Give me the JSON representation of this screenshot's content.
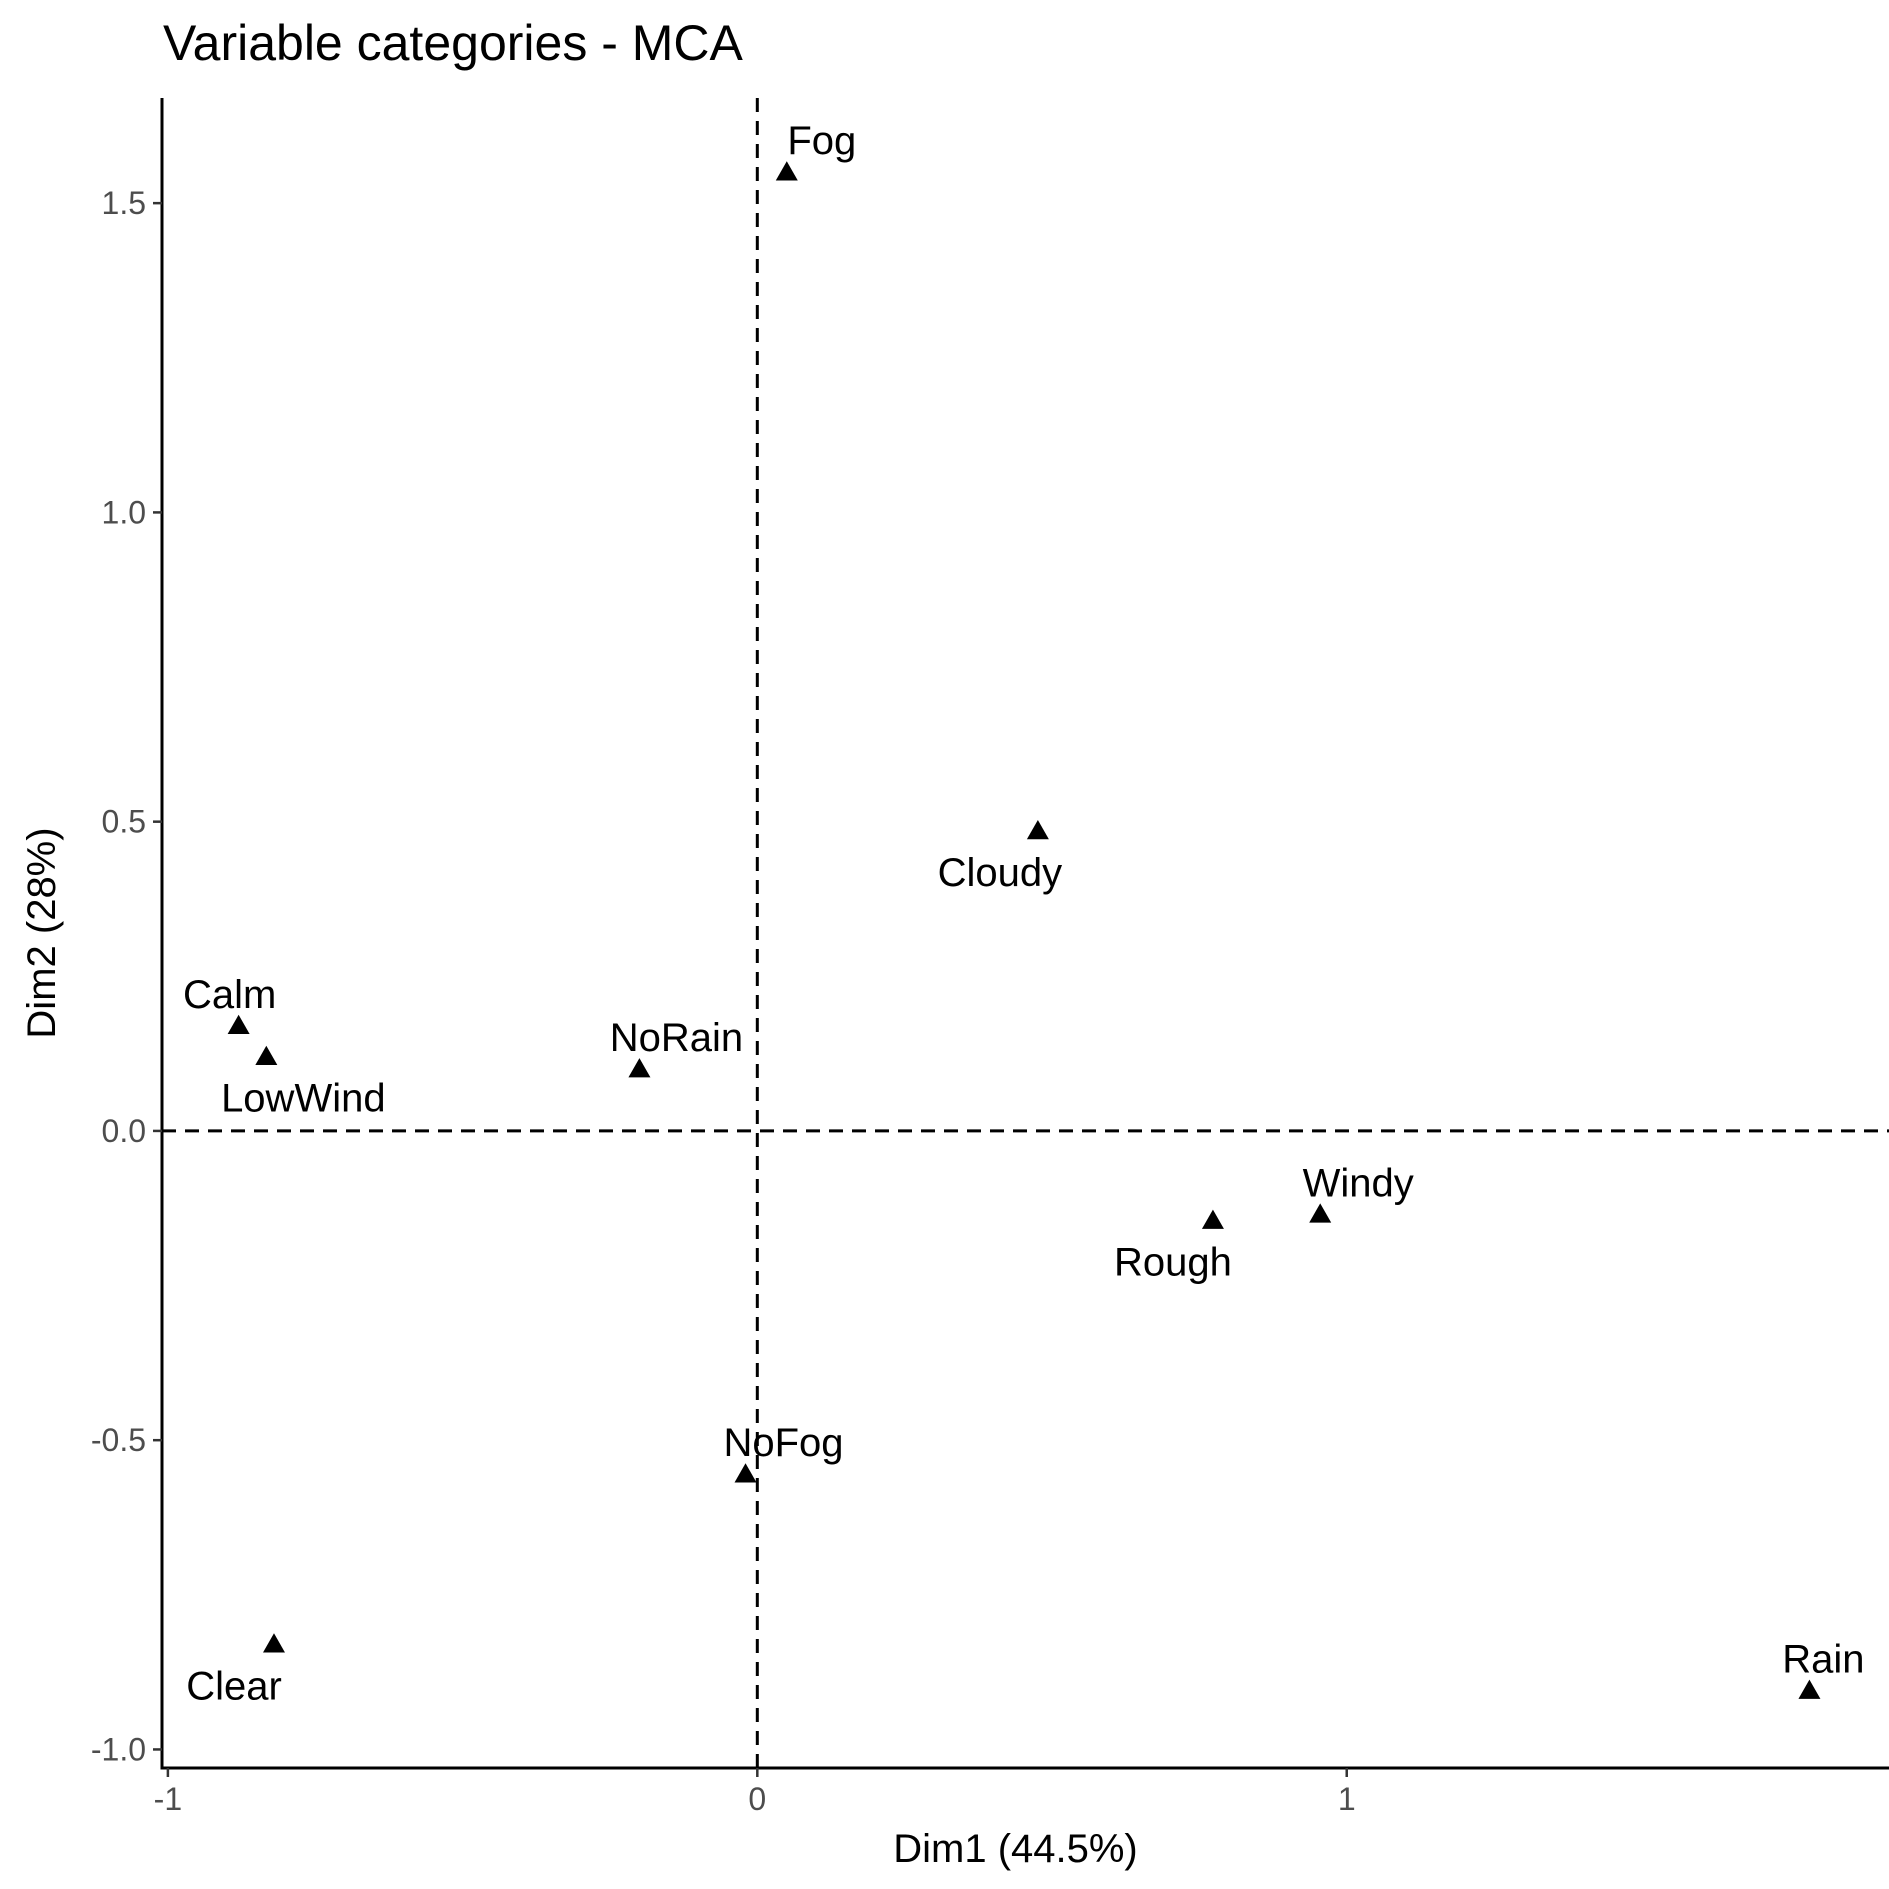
{
  "chart_data": {
    "type": "scatter",
    "title": "Variable categories - MCA",
    "xlabel": "Dim1 (44.5%)",
    "ylabel": "Dim2 (28%)",
    "xlim": [
      -1.01,
      1.92
    ],
    "ylim": [
      -1.03,
      1.67
    ],
    "x_ticks": [
      -1,
      0,
      1
    ],
    "x_tick_labels": [
      "-1",
      "0",
      "1"
    ],
    "y_ticks": [
      -1.0,
      -0.5,
      0.0,
      0.5,
      1.0,
      1.5
    ],
    "y_tick_labels": [
      "-1.0",
      "-0.5",
      "0.0",
      "0.5",
      "1.0",
      "1.5"
    ],
    "reference_lines": {
      "x": 0,
      "y": 0,
      "style": "dashed"
    },
    "grid": false,
    "marker": "triangle",
    "color": "#000000",
    "points": [
      {
        "label": "Fog",
        "x": 0.05,
        "y": 1.55
      },
      {
        "label": "Cloudy",
        "x": 0.476,
        "y": 0.485
      },
      {
        "label": "Calm",
        "x": -0.88,
        "y": 0.17
      },
      {
        "label": "LowWind",
        "x": -0.833,
        "y": 0.12
      },
      {
        "label": "NoRain",
        "x": -0.2,
        "y": 0.1
      },
      {
        "label": "Windy",
        "x": 0.955,
        "y": -0.135
      },
      {
        "label": "Rough",
        "x": 0.773,
        "y": -0.145
      },
      {
        "label": "NoFog",
        "x": -0.02,
        "y": -0.555
      },
      {
        "label": "Clear",
        "x": -0.82,
        "y": -0.83
      },
      {
        "label": "Rain",
        "x": 1.785,
        "y": -0.905
      }
    ]
  }
}
